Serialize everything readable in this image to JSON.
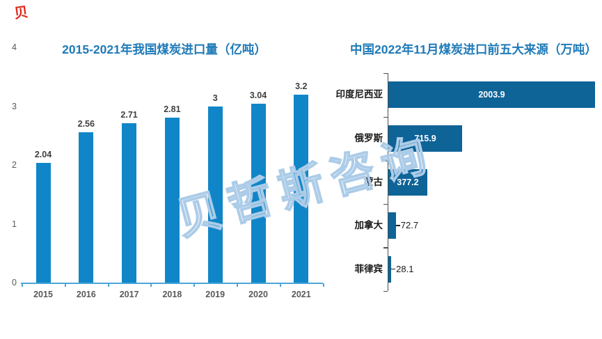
{
  "watermark": {
    "center_text": "贝哲斯咨询",
    "corner_text": "贝",
    "outline_color": "#accce8",
    "corner_color": "#DD2A1C"
  },
  "chart_data": [
    {
      "type": "bar",
      "title": "2015-2021年我国煤炭进口量（亿吨）",
      "categories": [
        "2015",
        "2016",
        "2017",
        "2018",
        "2019",
        "2020",
        "2021"
      ],
      "values": [
        2.04,
        2.56,
        2.71,
        2.81,
        3,
        3.04,
        3.2
      ],
      "value_labels": [
        "2.04",
        "2.56",
        "2.71",
        "2.81",
        "3",
        "3.04",
        "3.2"
      ],
      "xlabel": "",
      "ylabel": "",
      "ylim": [
        0,
        4
      ],
      "yticks": [
        0,
        1,
        2,
        3,
        4
      ],
      "grid": false,
      "legend": null,
      "bar_color": "#1086C8",
      "axis_color": "#4BA6D8",
      "title_color": "#1E7AB8"
    },
    {
      "type": "bar-horizontal",
      "title": "中国2022年11月煤炭进口前五大来源（万吨）",
      "categories": [
        "印度尼西亚",
        "俄罗斯",
        "蒙古",
        "加拿大",
        "菲律宾"
      ],
      "values": [
        2003.9,
        715.9,
        377.2,
        72.7,
        28.1
      ],
      "value_labels": [
        "2003.9",
        "715.9",
        "377.2",
        "72.7",
        "28.1"
      ],
      "xlabel": "",
      "ylabel": "",
      "xlim": [
        0,
        2050
      ],
      "grid": false,
      "legend": null,
      "bar_color": "#0E6397",
      "axis_color": "#4d4d4d",
      "title_color": "#1E7AB8"
    }
  ]
}
